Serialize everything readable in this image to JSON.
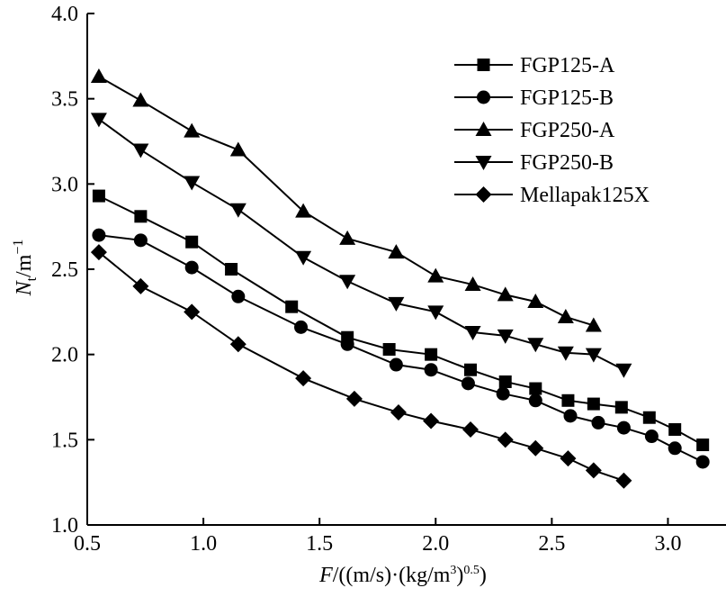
{
  "chart_data": {
    "type": "line",
    "xlabel": "F/((m/s)·(kg/m³)^0.5)",
    "ylabel": "Nt/m⁻¹",
    "xlim": [
      0.5,
      3.25
    ],
    "ylim": [
      1.0,
      4.0
    ],
    "xticks": [
      0.5,
      1.0,
      1.5,
      2.0,
      2.5,
      3.0
    ],
    "yticks": [
      1.0,
      1.5,
      2.0,
      2.5,
      3.0,
      3.5,
      4.0
    ],
    "xtick_labels": [
      "0.5",
      "1.0",
      "1.5",
      "2.0",
      "2.5",
      "3.0"
    ],
    "ytick_labels": [
      "1.0",
      "1.5",
      "2.0",
      "2.5",
      "3.0",
      "3.5",
      "4.0"
    ],
    "legend_position": "top-right",
    "grid": false,
    "series": [
      {
        "name": "FGP125-A",
        "marker": "square",
        "x": [
          0.55,
          0.73,
          0.95,
          1.12,
          1.38,
          1.62,
          1.8,
          1.98,
          2.15,
          2.3,
          2.43,
          2.57,
          2.68,
          2.8,
          2.92,
          3.03,
          3.15
        ],
        "y": [
          2.93,
          2.81,
          2.66,
          2.5,
          2.28,
          2.1,
          2.03,
          2.0,
          1.91,
          1.84,
          1.8,
          1.73,
          1.71,
          1.69,
          1.63,
          1.56,
          1.47
        ]
      },
      {
        "name": "FGP125-B",
        "marker": "circle",
        "x": [
          0.55,
          0.73,
          0.95,
          1.15,
          1.42,
          1.62,
          1.83,
          1.98,
          2.14,
          2.29,
          2.43,
          2.58,
          2.7,
          2.81,
          2.93,
          3.03,
          3.15
        ],
        "y": [
          2.7,
          2.67,
          2.51,
          2.34,
          2.16,
          2.06,
          1.94,
          1.91,
          1.83,
          1.77,
          1.73,
          1.64,
          1.6,
          1.57,
          1.52,
          1.45,
          1.37
        ]
      },
      {
        "name": "FGP250-A",
        "marker": "triangle-up",
        "x": [
          0.55,
          0.73,
          0.95,
          1.15,
          1.43,
          1.62,
          1.83,
          2.0,
          2.16,
          2.3,
          2.43,
          2.56,
          2.68
        ],
        "y": [
          3.63,
          3.49,
          3.31,
          3.2,
          2.84,
          2.68,
          2.6,
          2.46,
          2.41,
          2.35,
          2.31,
          2.22,
          2.17
        ]
      },
      {
        "name": "FGP250-B",
        "marker": "triangle-down",
        "x": [
          0.55,
          0.73,
          0.95,
          1.15,
          1.43,
          1.62,
          1.83,
          2.0,
          2.16,
          2.3,
          2.43,
          2.56,
          2.68,
          2.81
        ],
        "y": [
          3.38,
          3.2,
          3.01,
          2.85,
          2.57,
          2.43,
          2.3,
          2.25,
          2.13,
          2.11,
          2.06,
          2.01,
          2.0,
          1.91
        ]
      },
      {
        "name": "Mellapak125X",
        "marker": "diamond",
        "x": [
          0.55,
          0.73,
          0.95,
          1.15,
          1.43,
          1.65,
          1.84,
          1.98,
          2.15,
          2.3,
          2.43,
          2.57,
          2.68,
          2.81
        ],
        "y": [
          2.6,
          2.4,
          2.25,
          2.06,
          1.86,
          1.74,
          1.66,
          1.61,
          1.56,
          1.5,
          1.45,
          1.39,
          1.32,
          1.26
        ]
      }
    ]
  }
}
